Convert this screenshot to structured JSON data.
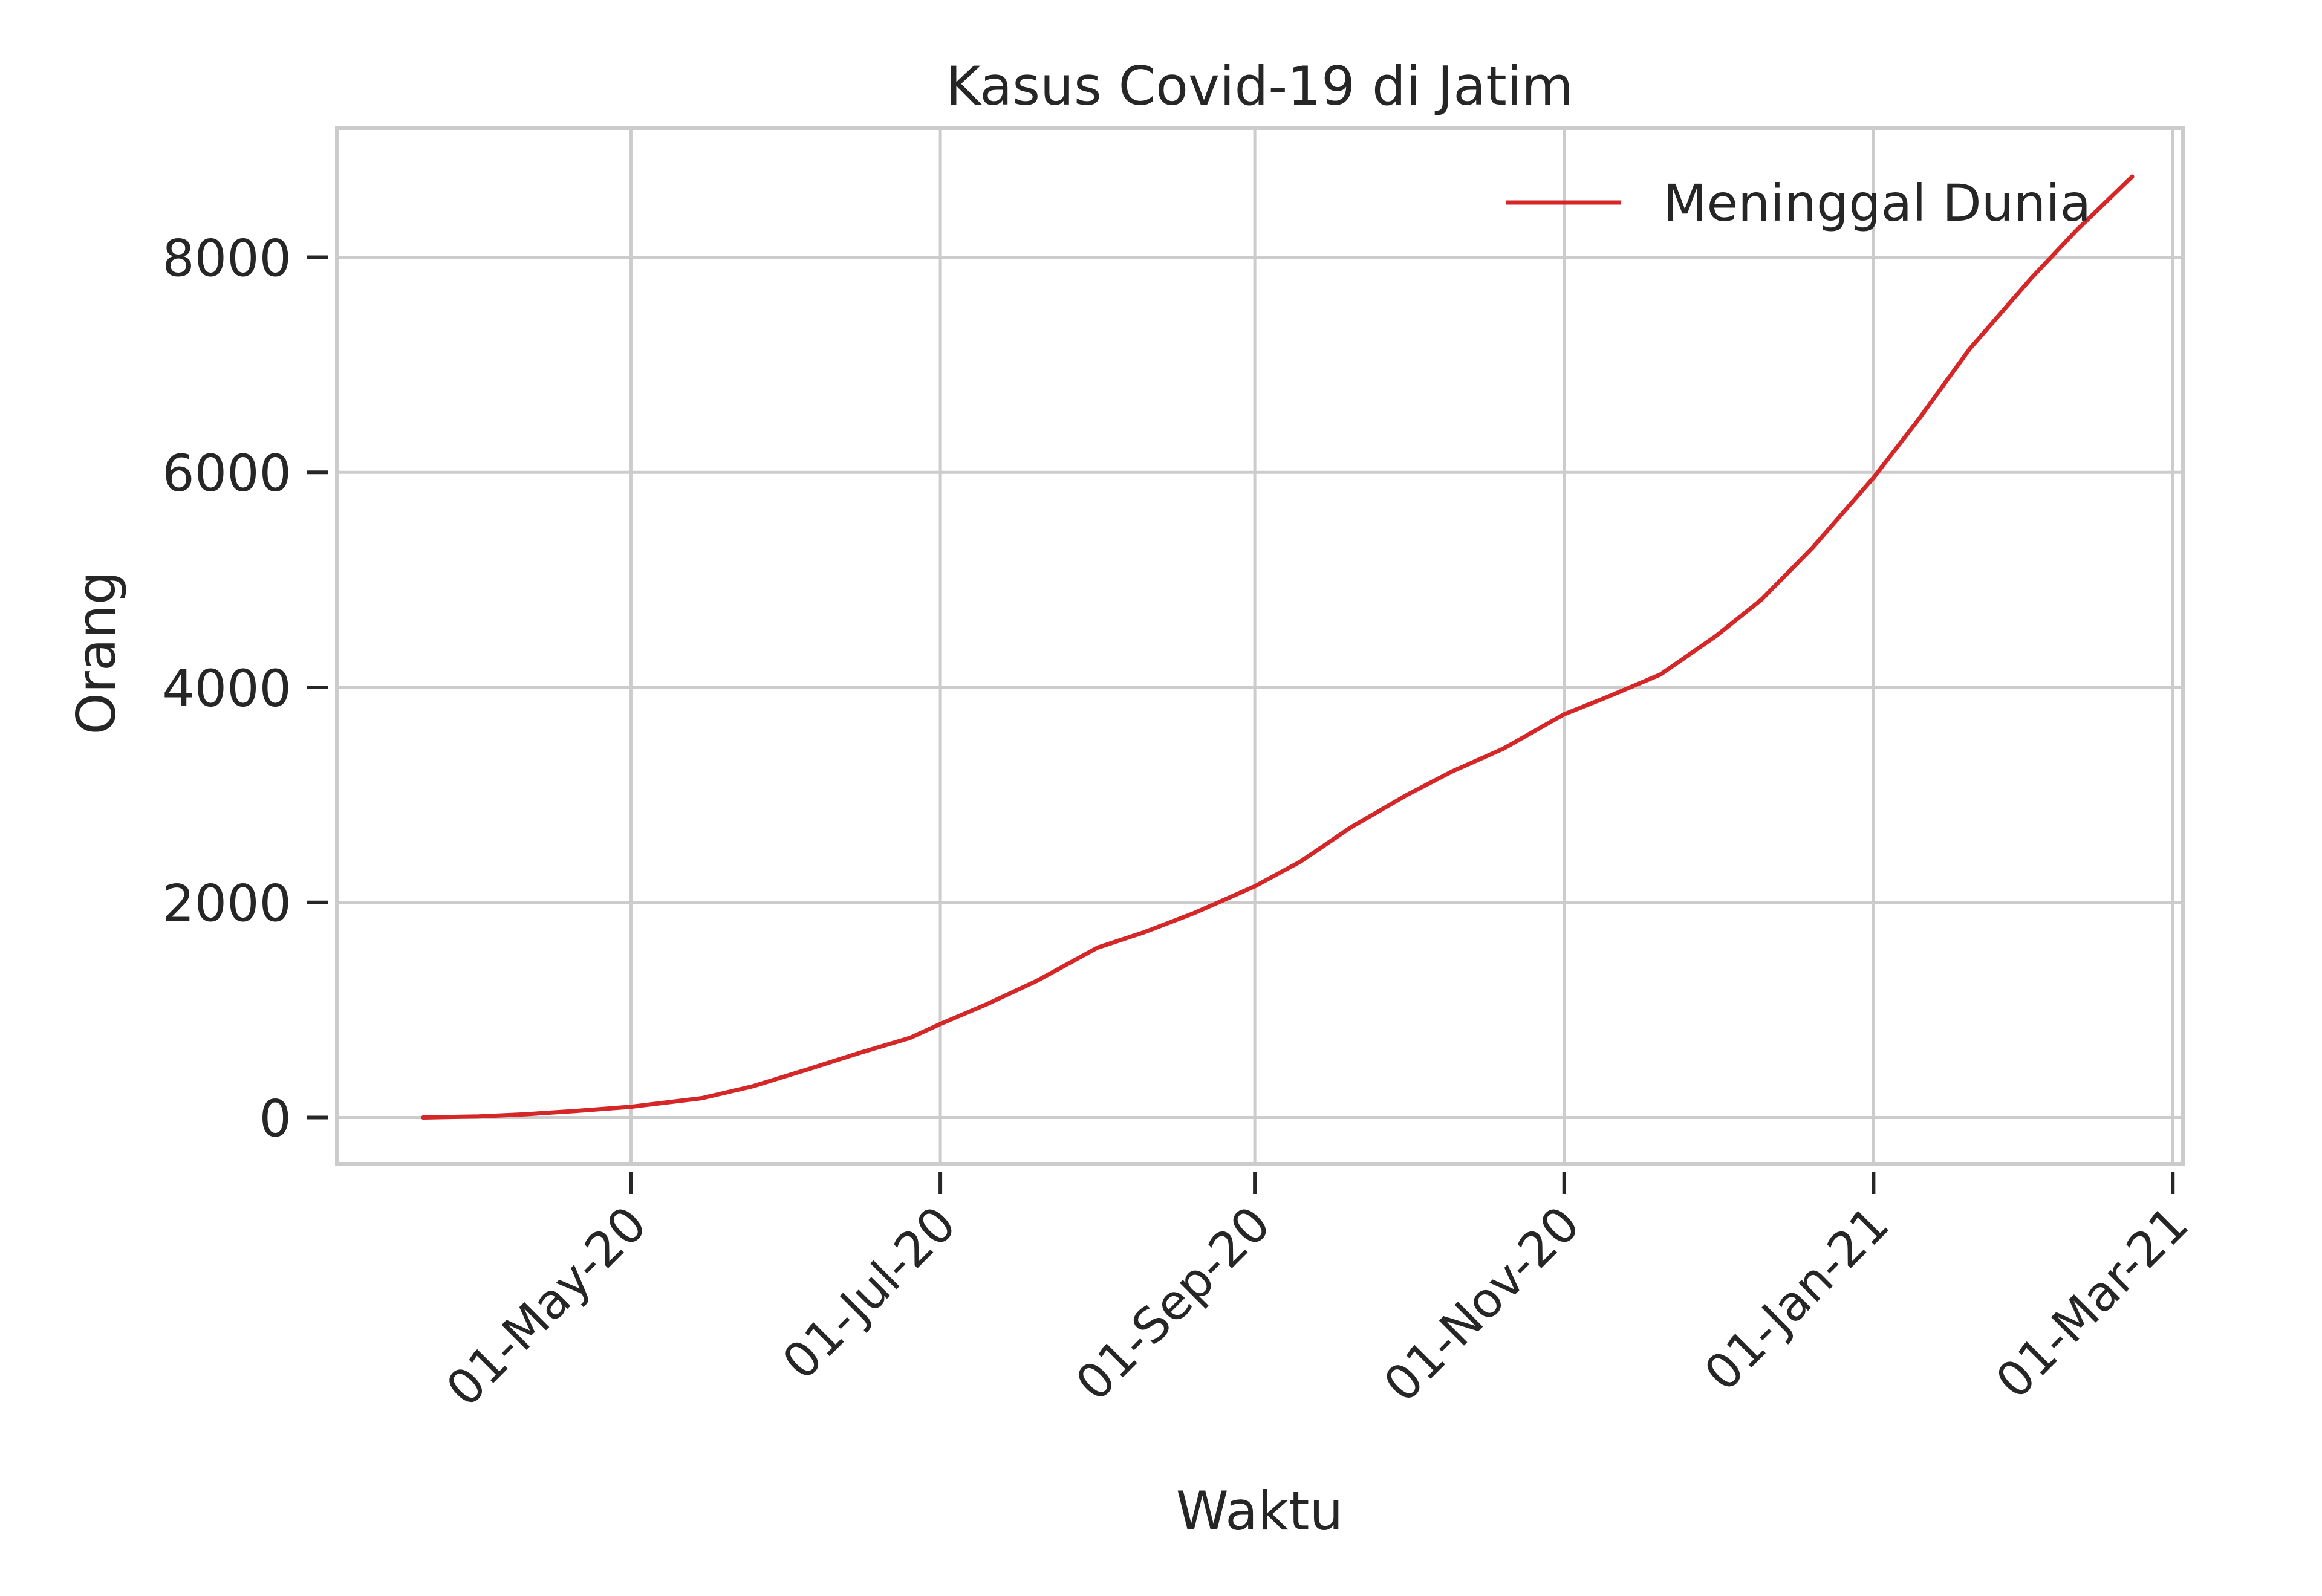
{
  "chart_data": {
    "type": "line",
    "title": "Kasus Covid-19 di Jatim",
    "xlabel": "Waktu",
    "ylabel": "Orang",
    "x_type": "date",
    "xlim": [
      "2020-03-04",
      "2021-03-03"
    ],
    "ylim": [
      -430,
      9200
    ],
    "xticks": [
      {
        "date": "2020-05-01",
        "label": "01-May-20"
      },
      {
        "date": "2020-07-01",
        "label": "01-Jul-20"
      },
      {
        "date": "2020-09-01",
        "label": "01-Sep-20"
      },
      {
        "date": "2020-11-01",
        "label": "01-Nov-20"
      },
      {
        "date": "2021-01-01",
        "label": "01-Jan-21"
      },
      {
        "date": "2021-03-01",
        "label": "01-Mar-21"
      }
    ],
    "yticks": [
      0,
      2000,
      4000,
      6000,
      8000
    ],
    "grid": true,
    "legend_position": "top-right",
    "series": [
      {
        "name": "Meninggal Dunia",
        "color": "#d62728",
        "points": [
          [
            "2020-03-21",
            0
          ],
          [
            "2020-04-01",
            10
          ],
          [
            "2020-04-10",
            30
          ],
          [
            "2020-04-20",
            60
          ],
          [
            "2020-05-01",
            100
          ],
          [
            "2020-05-15",
            180
          ],
          [
            "2020-05-25",
            290
          ],
          [
            "2020-06-05",
            450
          ],
          [
            "2020-06-15",
            600
          ],
          [
            "2020-06-25",
            740
          ],
          [
            "2020-07-01",
            870
          ],
          [
            "2020-07-10",
            1050
          ],
          [
            "2020-07-20",
            1270
          ],
          [
            "2020-08-01",
            1580
          ],
          [
            "2020-08-10",
            1720
          ],
          [
            "2020-08-20",
            1900
          ],
          [
            "2020-09-01",
            2150
          ],
          [
            "2020-09-10",
            2380
          ],
          [
            "2020-09-20",
            2700
          ],
          [
            "2020-10-01",
            3000
          ],
          [
            "2020-10-10",
            3220
          ],
          [
            "2020-10-20",
            3430
          ],
          [
            "2020-11-01",
            3750
          ],
          [
            "2020-11-10",
            3920
          ],
          [
            "2020-11-20",
            4120
          ],
          [
            "2020-12-01",
            4480
          ],
          [
            "2020-12-10",
            4820
          ],
          [
            "2020-12-20",
            5300
          ],
          [
            "2021-01-01",
            5950
          ],
          [
            "2021-01-10",
            6500
          ],
          [
            "2021-01-20",
            7150
          ],
          [
            "2021-02-01",
            7800
          ],
          [
            "2021-02-10",
            8250
          ],
          [
            "2021-02-21",
            8750
          ]
        ]
      }
    ]
  }
}
